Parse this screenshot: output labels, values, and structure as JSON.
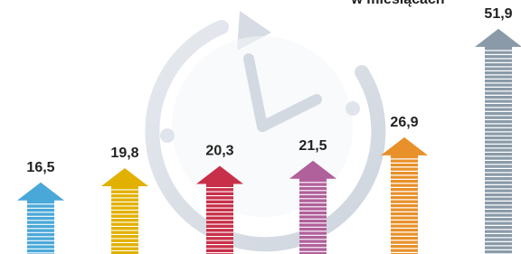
{
  "chart_data": {
    "type": "arrow-bar",
    "title": "w miesiącach",
    "values": [
      16.5,
      19.8,
      20.3,
      21.5,
      26.9,
      51.9
    ],
    "value_labels": [
      "16,5",
      "19,8",
      "20,3",
      "21,5",
      "26,9",
      "51,9"
    ],
    "colors": [
      "#4aa8d8",
      "#e2b100",
      "#c8304a",
      "#b0609a",
      "#e8902a",
      "#8a9aa8"
    ]
  }
}
